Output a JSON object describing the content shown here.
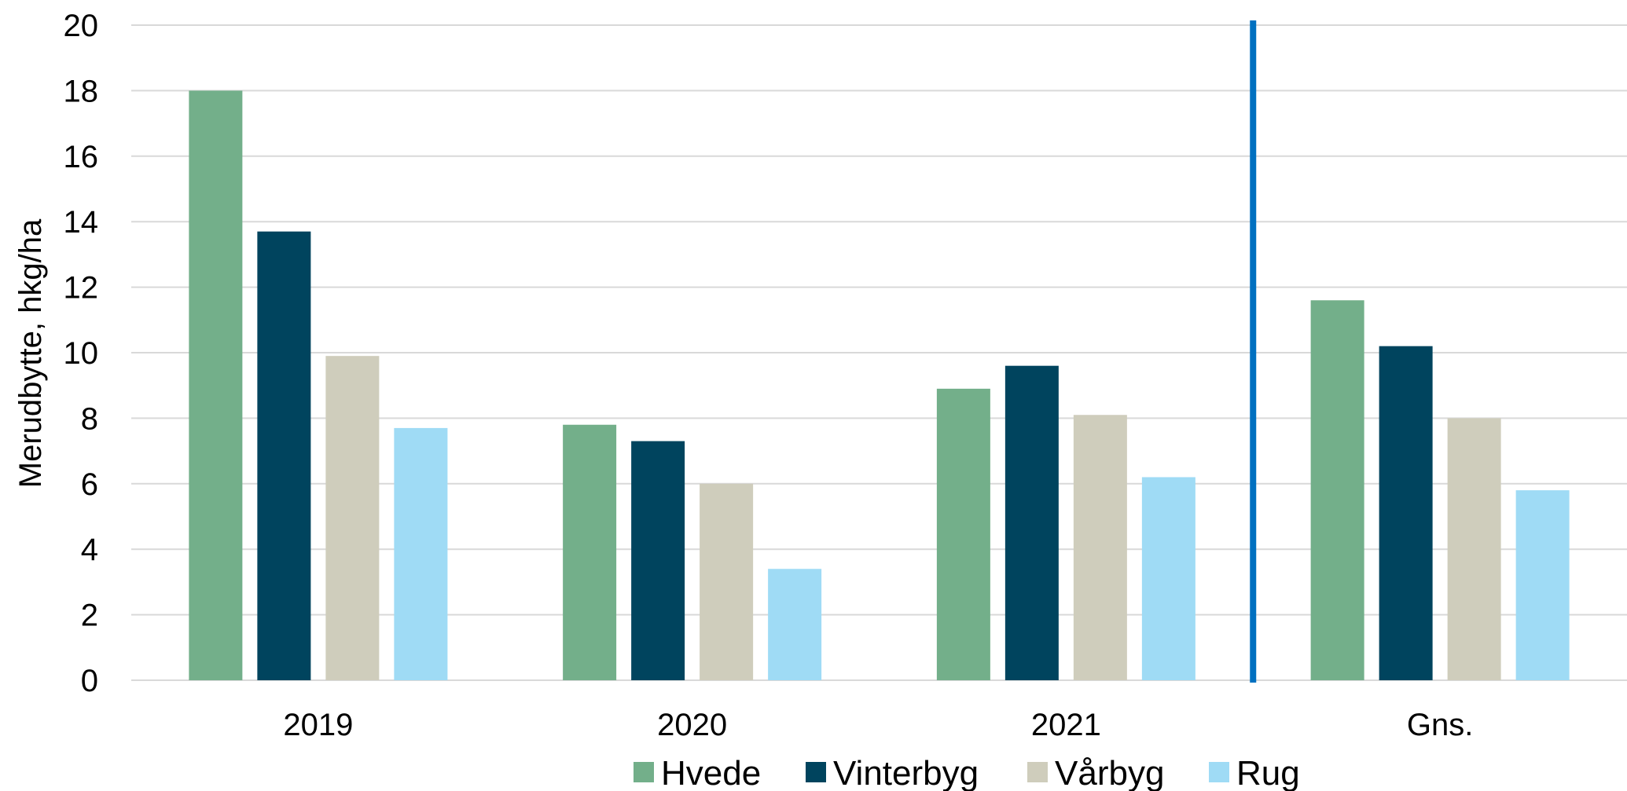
{
  "chart_data": {
    "type": "bar",
    "categories": [
      "2019",
      "2020",
      "2021",
      "Gns."
    ],
    "series": [
      {
        "name": "Hvede",
        "color": "#73AF8A",
        "values": [
          18.0,
          7.8,
          8.9,
          11.6
        ]
      },
      {
        "name": "Vinterbyg",
        "color": "#00445E",
        "values": [
          13.7,
          7.3,
          9.6,
          10.2
        ]
      },
      {
        "name": "Vårbyg",
        "color": "#CFCDBC",
        "values": [
          9.9,
          6.0,
          8.1,
          8.0
        ]
      },
      {
        "name": "Rug",
        "color": "#9FDBF5",
        "values": [
          7.7,
          3.4,
          6.2,
          5.8
        ]
      }
    ],
    "title": "",
    "xlabel": "",
    "ylabel": "Merudbytte, hkg/ha",
    "ylim": [
      0,
      20
    ],
    "yticks": [
      "0",
      "2",
      "4",
      "6",
      "8",
      "10",
      "12",
      "14",
      "16",
      "18",
      "20"
    ],
    "grid": true,
    "legend_position": "bottom",
    "separator": {
      "between": [
        "2021",
        "Gns."
      ],
      "color": "#0070C0"
    },
    "gridline_color": "#D9D9D9"
  }
}
